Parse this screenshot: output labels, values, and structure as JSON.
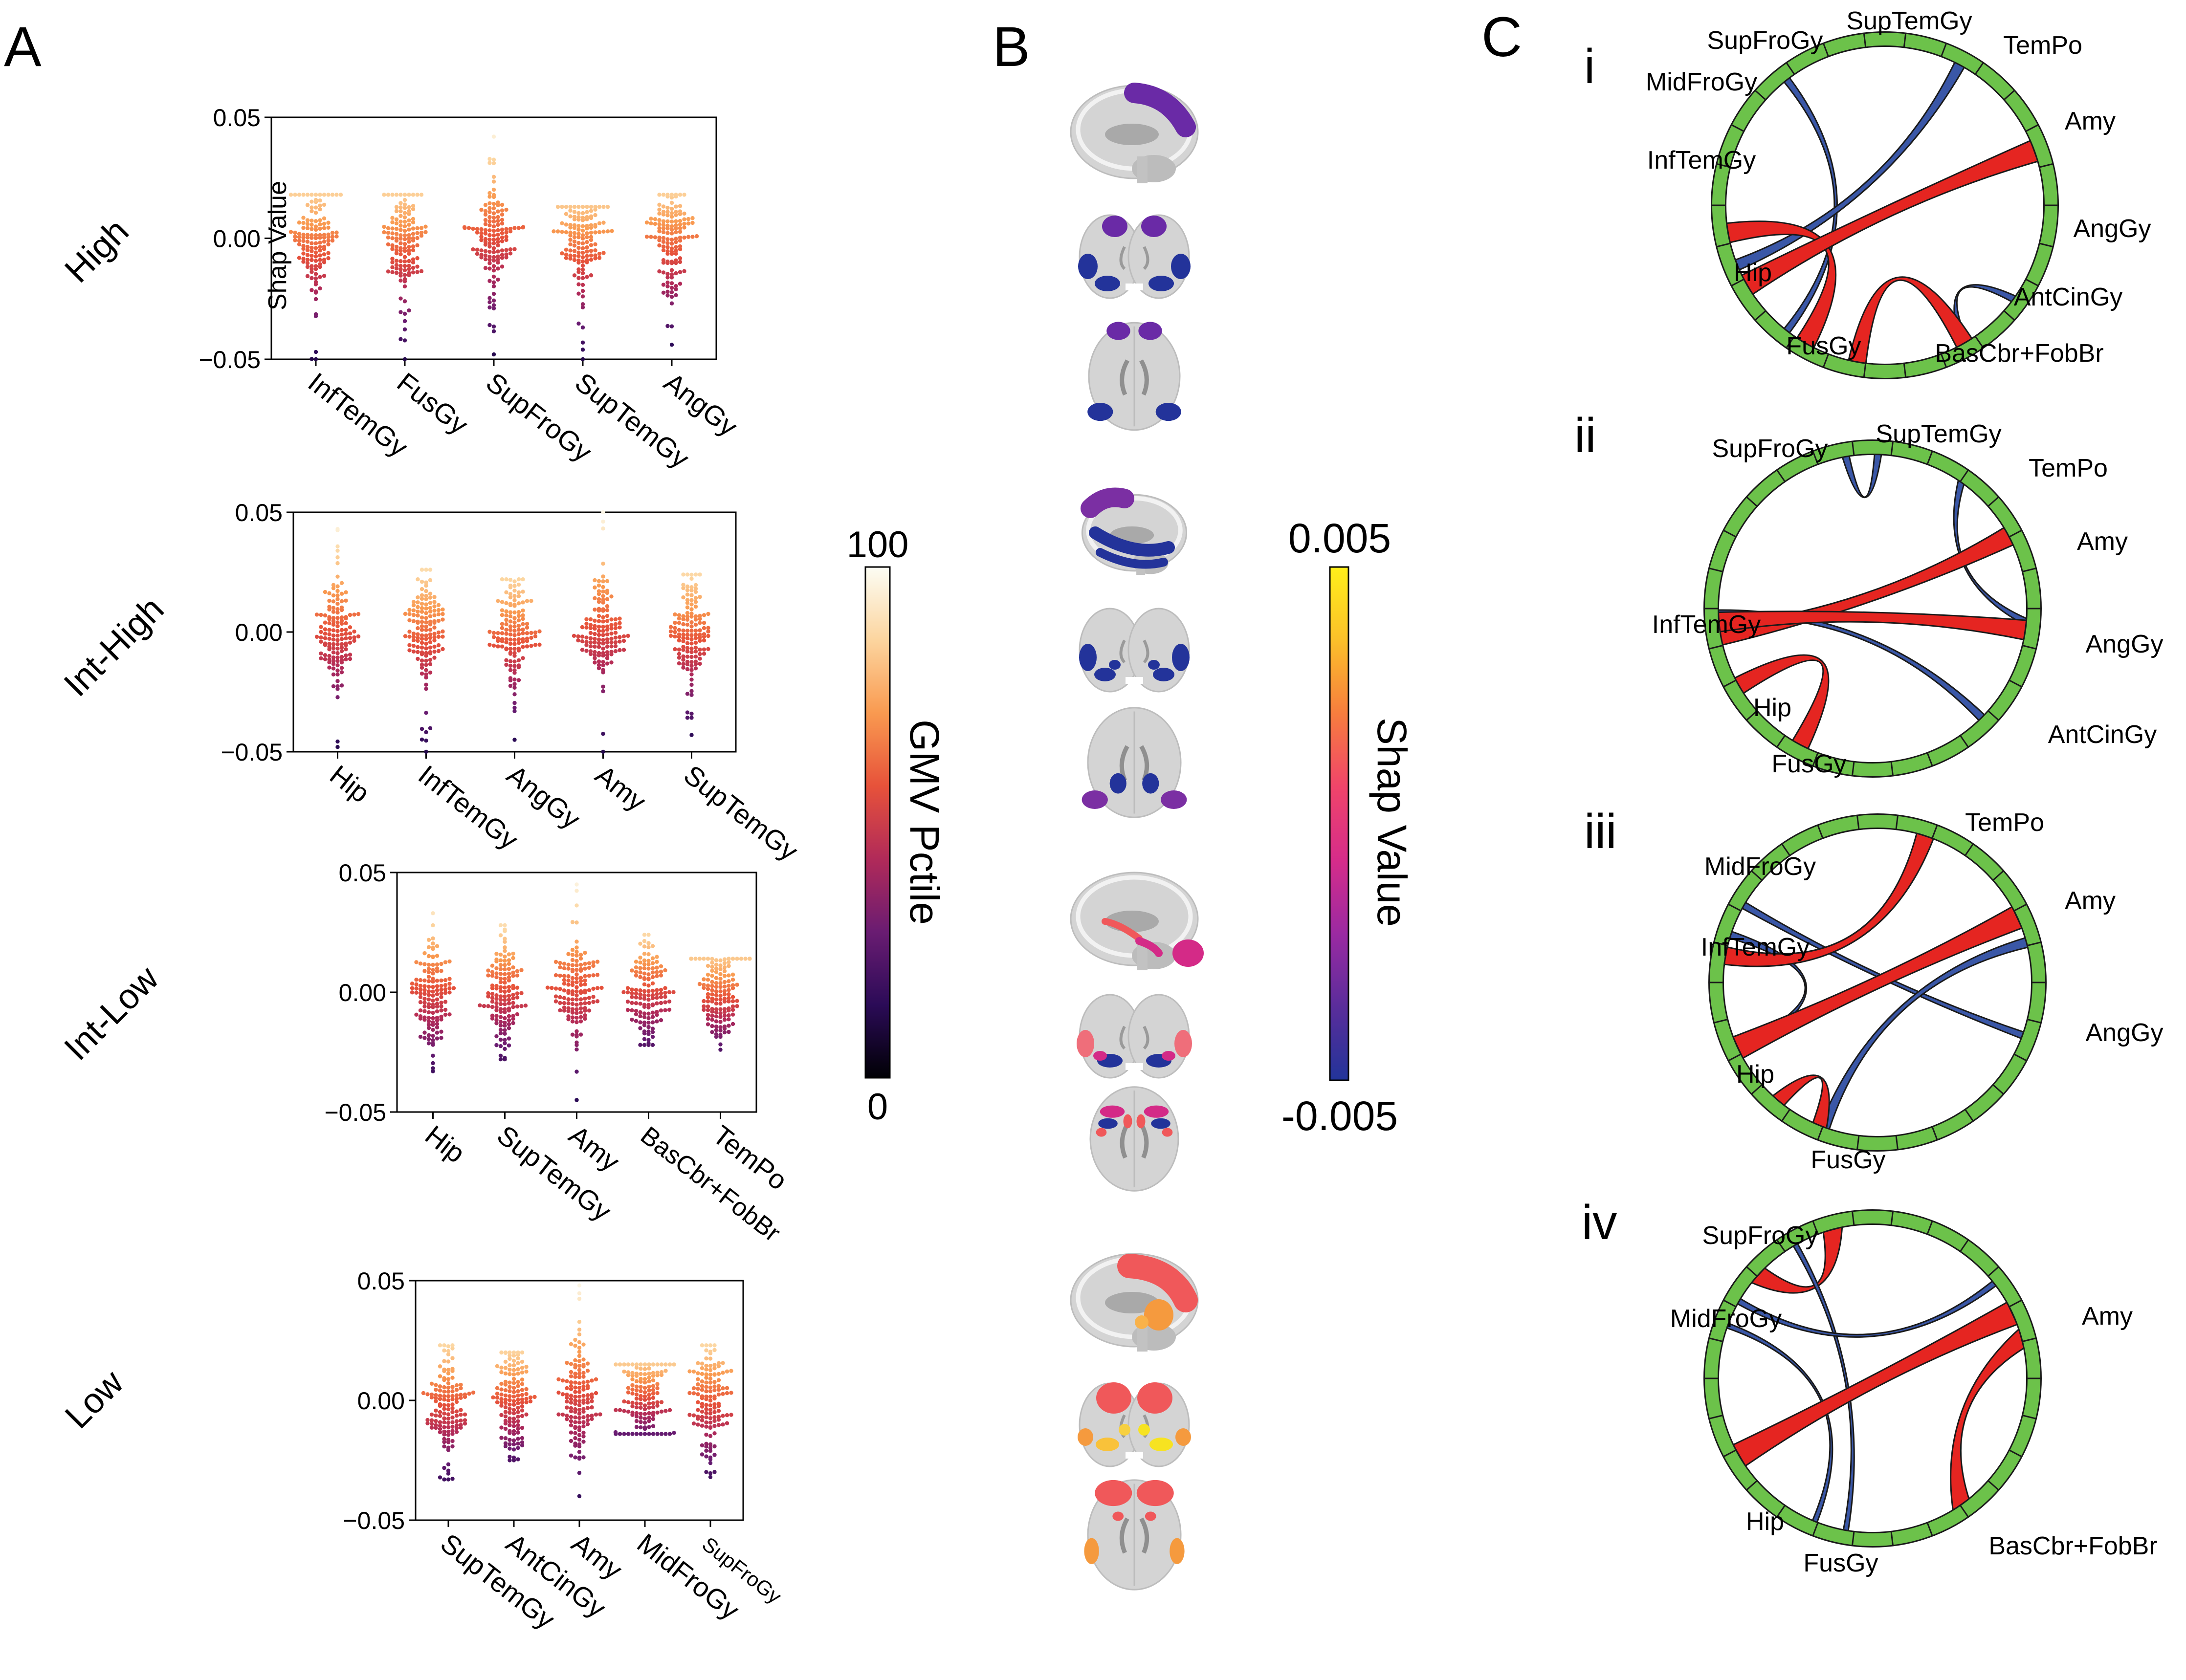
{
  "panels": {
    "A": "A",
    "B": "B",
    "C": "C"
  },
  "colors": {
    "gmv_scale": [
      "#000004",
      "#2b0b57",
      "#6a1c72",
      "#b12a59",
      "#e7523a",
      "#f99a50",
      "#fcd59f",
      "#fcfdf4"
    ],
    "shap_scale": [
      "#22349a",
      "#5a2d9b",
      "#9b2aa2",
      "#d62c8a",
      "#f0446a",
      "#f77d3e",
      "#fbc02a",
      "#ffef1a"
    ],
    "ring": "#6cc24a",
    "positive": "#e52521",
    "negative": "#3a57a7"
  },
  "chart_data": [
    {
      "type": "scatter",
      "id": "high",
      "group_label": "High",
      "ylabel": "Shap Value",
      "ylim": [
        -0.05,
        0.05
      ],
      "y_ticks": [
        "0.05",
        "0.00",
        "−0.05"
      ],
      "categories": [
        "InfTemGy",
        "FusGy",
        "SupFroGy",
        "SupTemGy",
        "AngGy"
      ],
      "spread": [
        [
          -0.05,
          0.018
        ],
        [
          -0.05,
          0.018
        ],
        [
          -0.048,
          0.042
        ],
        [
          -0.05,
          0.013
        ],
        [
          -0.044,
          0.018
        ]
      ]
    },
    {
      "type": "scatter",
      "id": "inthigh",
      "group_label": "Int-High",
      "ylabel": "",
      "ylim": [
        -0.05,
        0.05
      ],
      "y_ticks": [
        "0.05",
        "0.00",
        "−0.05"
      ],
      "categories": [
        "Hip",
        "InfTemGy",
        "AngGy",
        "Amy",
        "SupTemGy"
      ],
      "spread": [
        [
          -0.048,
          0.043
        ],
        [
          -0.05,
          0.026
        ],
        [
          -0.045,
          0.022
        ],
        [
          -0.05,
          0.05
        ],
        [
          -0.043,
          0.024
        ]
      ]
    },
    {
      "type": "scatter",
      "id": "intlow",
      "group_label": "Int-Low",
      "ylabel": "",
      "ylim": [
        -0.05,
        0.05
      ],
      "y_ticks": [
        "0.05",
        "0.00",
        "−0.05"
      ],
      "categories": [
        "Hip",
        "SupTemGy",
        "Amy",
        "BasCbr+FobBr",
        "TemPo"
      ],
      "spread": [
        [
          -0.033,
          0.033
        ],
        [
          -0.028,
          0.028
        ],
        [
          -0.045,
          0.045
        ],
        [
          -0.022,
          0.024
        ],
        [
          -0.024,
          0.014
        ]
      ]
    },
    {
      "type": "scatter",
      "id": "low",
      "group_label": "Low",
      "ylabel": "",
      "ylim": [
        -0.05,
        0.05
      ],
      "y_ticks": [
        "0.05",
        "0.00",
        "−0.05"
      ],
      "categories": [
        "SupTemGy",
        "AntCinGy",
        "Amy",
        "MidFroGy",
        "SupFroGy"
      ],
      "spread": [
        [
          -0.033,
          0.023
        ],
        [
          -0.025,
          0.02
        ],
        [
          -0.04,
          0.048
        ],
        [
          -0.014,
          0.015
        ],
        [
          -0.032,
          0.023
        ]
      ]
    }
  ],
  "gmv_colorbar": {
    "label": "GMV Pctile",
    "max": "100",
    "min": "0"
  },
  "shap_colorbar": {
    "label": "Shap Value",
    "max": "0.005",
    "min": "-0.005"
  },
  "chords": [
    {
      "numeral": "i",
      "labels": [
        "SupFroGy",
        "SupTemGy",
        "TemPo",
        "MidFroGy",
        "Amy",
        "InfTemGy",
        "AngGy",
        "Hip",
        "AntCinGy",
        "FusGy",
        "BasCbr+FobBr"
      ],
      "links": [
        {
          "from": "MidFroGy",
          "to": "FusGy",
          "sign": "negative"
        },
        {
          "from": "TemPo",
          "to": "Hip",
          "sign": "negative"
        },
        {
          "from": "AngGy",
          "to": "AntCinGy",
          "sign": "negative"
        },
        {
          "from": "InfTemGy",
          "to": "FusGy",
          "sign": "positive"
        },
        {
          "from": "Amy",
          "to": "Hip",
          "sign": "positive"
        },
        {
          "from": "AntCinGy",
          "to": "BasCbr+FobBr",
          "sign": "positive"
        }
      ]
    },
    {
      "numeral": "ii",
      "labels": [
        "SupFroGy",
        "SupTemGy",
        "TemPo",
        "Amy",
        "InfTemGy",
        "AngGy",
        "Hip",
        "AntCinGy",
        "FusGy"
      ],
      "links": [
        {
          "from": "SupTemGy",
          "to": "SupTemGy",
          "sign": "negative"
        },
        {
          "from": "TemPo",
          "to": "AngGy",
          "sign": "negative"
        },
        {
          "from": "InfTemGy",
          "to": "AntCinGy",
          "sign": "negative"
        },
        {
          "from": "Amy",
          "to": "InfTemGy",
          "sign": "positive"
        },
        {
          "from": "InfTemGy",
          "to": "AngGy",
          "sign": "positive"
        },
        {
          "from": "Hip",
          "to": "FusGy",
          "sign": "positive"
        }
      ]
    },
    {
      "numeral": "iii",
      "labels": [
        "TemPo",
        "MidFroGy",
        "Amy",
        "InfTemGy",
        "AngGy",
        "Hip",
        "FusGy"
      ],
      "links": [
        {
          "from": "MidFroGy",
          "to": "AngGy",
          "sign": "negative"
        },
        {
          "from": "MidFroGy",
          "to": "Hip",
          "sign": "negative"
        },
        {
          "from": "Amy",
          "to": "FusGy",
          "sign": "negative"
        },
        {
          "from": "TemPo",
          "to": "InfTemGy",
          "sign": "positive"
        },
        {
          "from": "Amy",
          "to": "Hip",
          "sign": "positive"
        },
        {
          "from": "FusGy",
          "to": "FusGy",
          "sign": "positive"
        }
      ]
    },
    {
      "numeral": "iv",
      "labels": [
        "SupFroGy",
        "MidFroGy",
        "Amy",
        "Hip",
        "FusGy",
        "BasCbr+FobBr"
      ],
      "links": [
        {
          "from": "SupFroGy",
          "to": "MidFroGy",
          "sign": "positive"
        },
        {
          "from": "SupFroGy",
          "to": "FusGy",
          "sign": "negative"
        },
        {
          "from": "MidFroGy",
          "to": "Amy",
          "sign": "negative"
        },
        {
          "from": "MidFroGy",
          "to": "BasCbr+FobBr",
          "sign": "negative"
        },
        {
          "from": "Amy",
          "to": "Hip",
          "sign": "positive"
        },
        {
          "from": "Amy",
          "to": "BasCbr+FobBr",
          "sign": "positive"
        }
      ]
    }
  ]
}
